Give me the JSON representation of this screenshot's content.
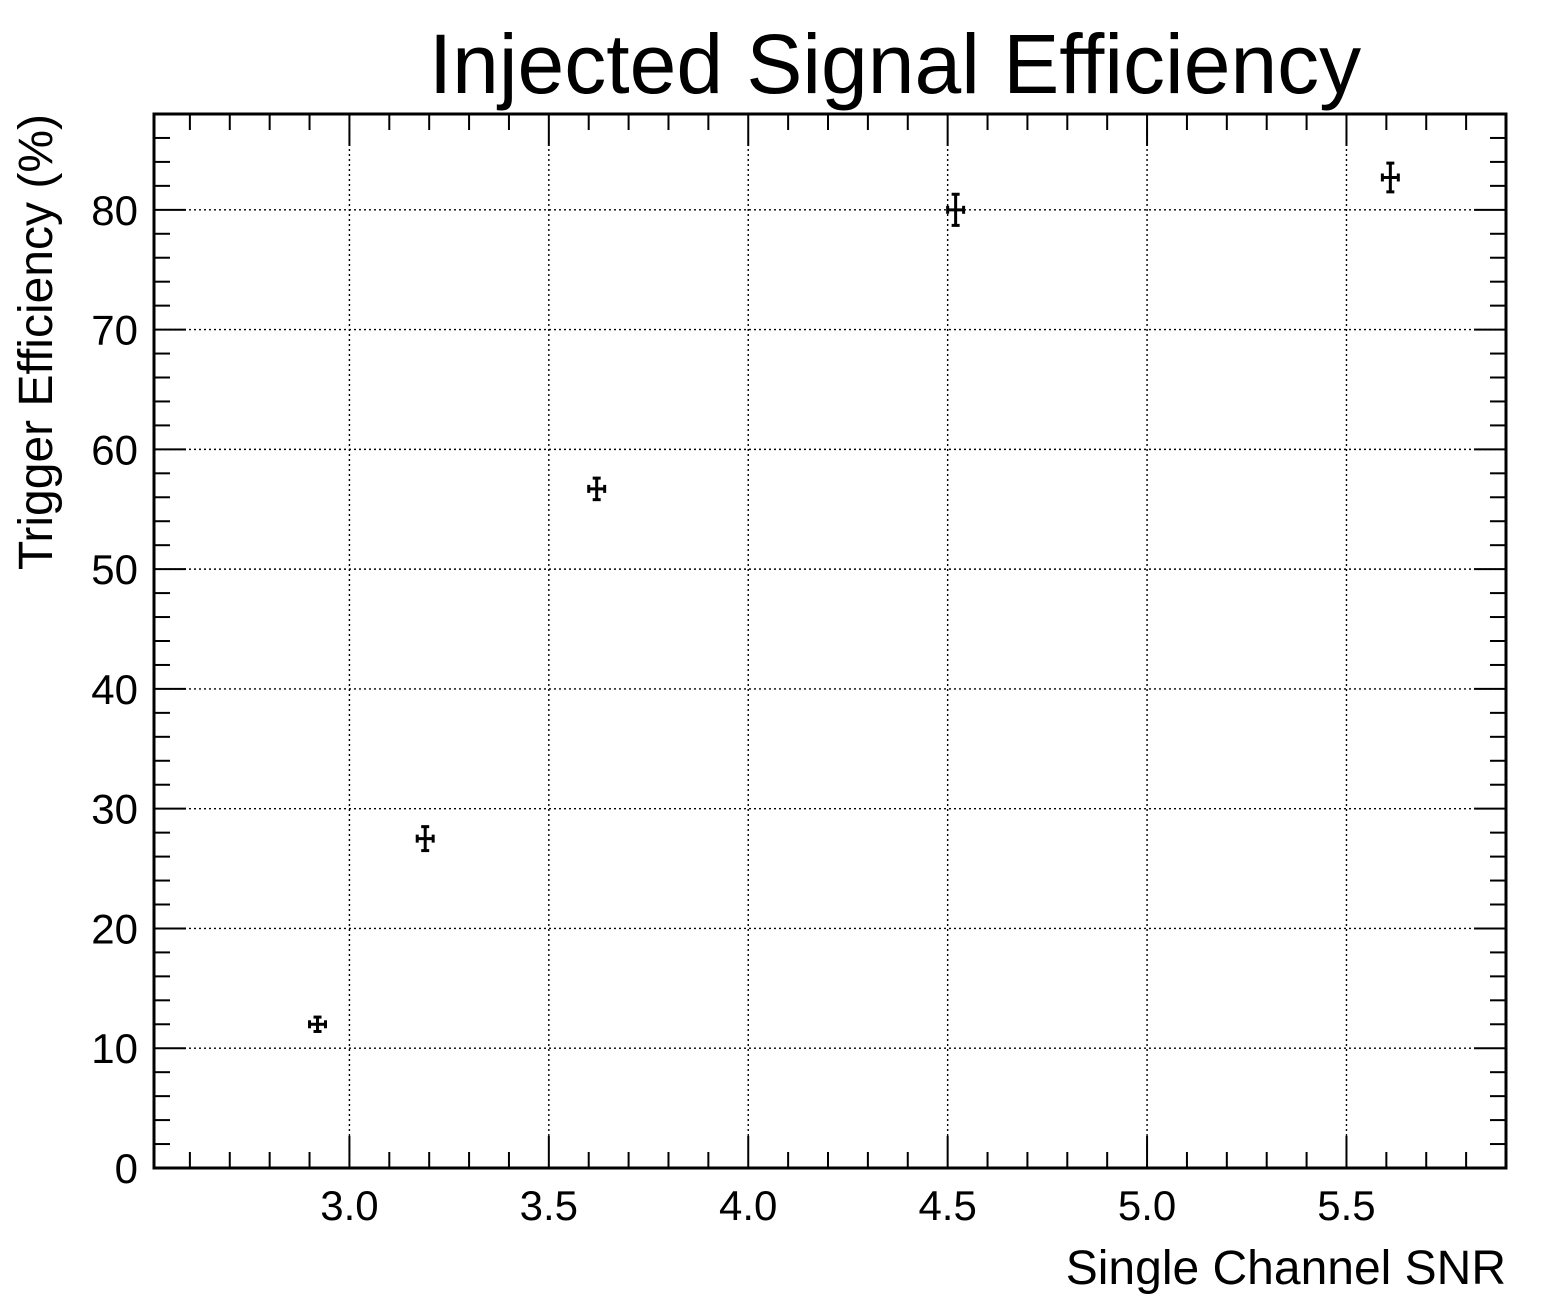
{
  "chart_data": {
    "type": "scatter",
    "title": "Injected Signal Efficiency",
    "xlabel": "Single Channel SNR",
    "ylabel": "Trigger Efficiency (%)",
    "xlim": [
      2.51,
      5.9
    ],
    "ylim": [
      0,
      88
    ],
    "x_ticks": [
      3.0,
      3.5,
      4.0,
      4.5,
      5.0,
      5.5
    ],
    "x_tick_labels": [
      "3.0",
      "3.5",
      "4.0",
      "4.5",
      "5.0",
      "5.5"
    ],
    "y_ticks": [
      0,
      10,
      20,
      30,
      40,
      50,
      60,
      70,
      80
    ],
    "y_tick_labels": [
      "0",
      "10",
      "20",
      "30",
      "40",
      "50",
      "60",
      "70",
      "80"
    ],
    "grid": true,
    "points": [
      {
        "x": 2.92,
        "y": 12.0,
        "xerr": 0.02,
        "yerr": 0.6
      },
      {
        "x": 3.19,
        "y": 27.5,
        "xerr": 0.02,
        "yerr": 1.0
      },
      {
        "x": 3.62,
        "y": 56.7,
        "xerr": 0.02,
        "yerr": 0.9
      },
      {
        "x": 4.52,
        "y": 80.0,
        "xerr": 0.02,
        "yerr": 1.3
      },
      {
        "x": 5.61,
        "y": 82.7,
        "xerr": 0.02,
        "yerr": 1.2
      }
    ]
  }
}
